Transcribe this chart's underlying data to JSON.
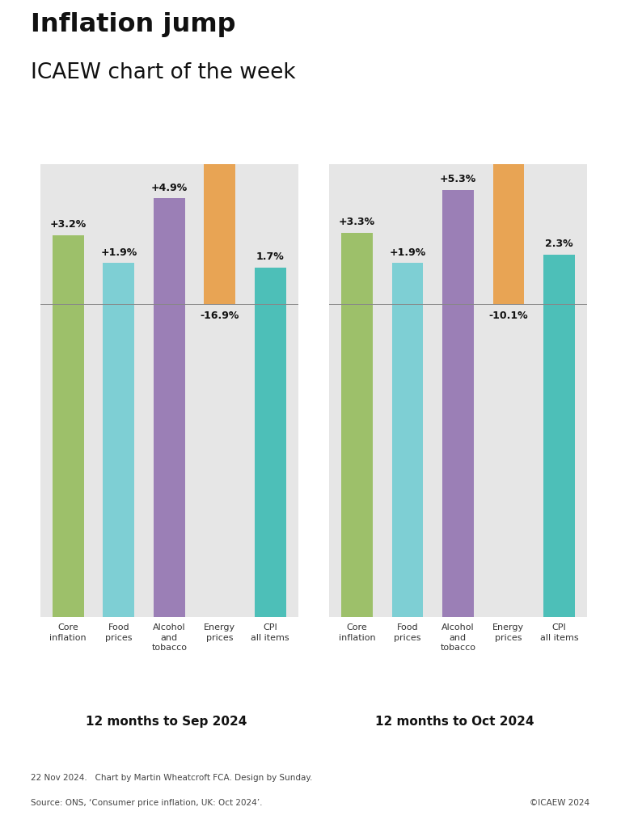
{
  "title_bold": "Inflation jump",
  "title_regular": "ICAEW chart of the week",
  "panel1_title": "12 months to Sep 2024",
  "panel2_title": "12 months to Oct 2024",
  "panel1": {
    "categories": [
      "Core\ninflation",
      "Food\nprices",
      "Alcohol\nand\ntobacco",
      "Energy\nprices",
      "CPI\nall items"
    ],
    "values": [
      3.2,
      1.9,
      4.9,
      -16.9,
      1.7
    ],
    "labels": [
      "+3.2%",
      "+1.9%",
      "+4.9%",
      "-16.9%",
      "1.7%"
    ],
    "colors": [
      "#9dc06a",
      "#7ecfd4",
      "#9b7fb6",
      "#e8a454",
      "#4dbfb8"
    ],
    "bar_tops": [
      3.2,
      1.9,
      4.9,
      4.9,
      1.7
    ],
    "bar_bottoms": [
      -14.0,
      -14.0,
      -14.0,
      -14.0,
      -14.0
    ]
  },
  "panel2": {
    "categories": [
      "Core\ninflation",
      "Food\nprices",
      "Alcohol\nand\ntobacco",
      "Energy\nprices",
      "CPI\nall items"
    ],
    "values": [
      3.3,
      1.9,
      5.3,
      -10.1,
      2.3
    ],
    "labels": [
      "+3.3%",
      "+1.9%",
      "+5.3%",
      "-10.1%",
      "2.3%"
    ],
    "colors": [
      "#9dc06a",
      "#7ecfd4",
      "#9b7fb6",
      "#e8a454",
      "#4dbfb8"
    ],
    "bar_tops": [
      3.3,
      1.9,
      5.3,
      5.3,
      2.3
    ],
    "bar_bottoms": [
      -14.0,
      -14.0,
      -14.0,
      -14.0,
      -14.0
    ]
  },
  "background_color": "#e6e6e6",
  "outer_bg": "#ffffff",
  "footer_line1": "22 Nov 2024.   Chart by Martin Wheatcroft FCA. Design by Sunday.",
  "footer_line2": "Source: ONS, ‘Consumer price inflation, UK: Oct 2024’.",
  "footer_right": "©ICAEW 2024",
  "ylim_min": -14.5,
  "ylim_max": 6.5
}
